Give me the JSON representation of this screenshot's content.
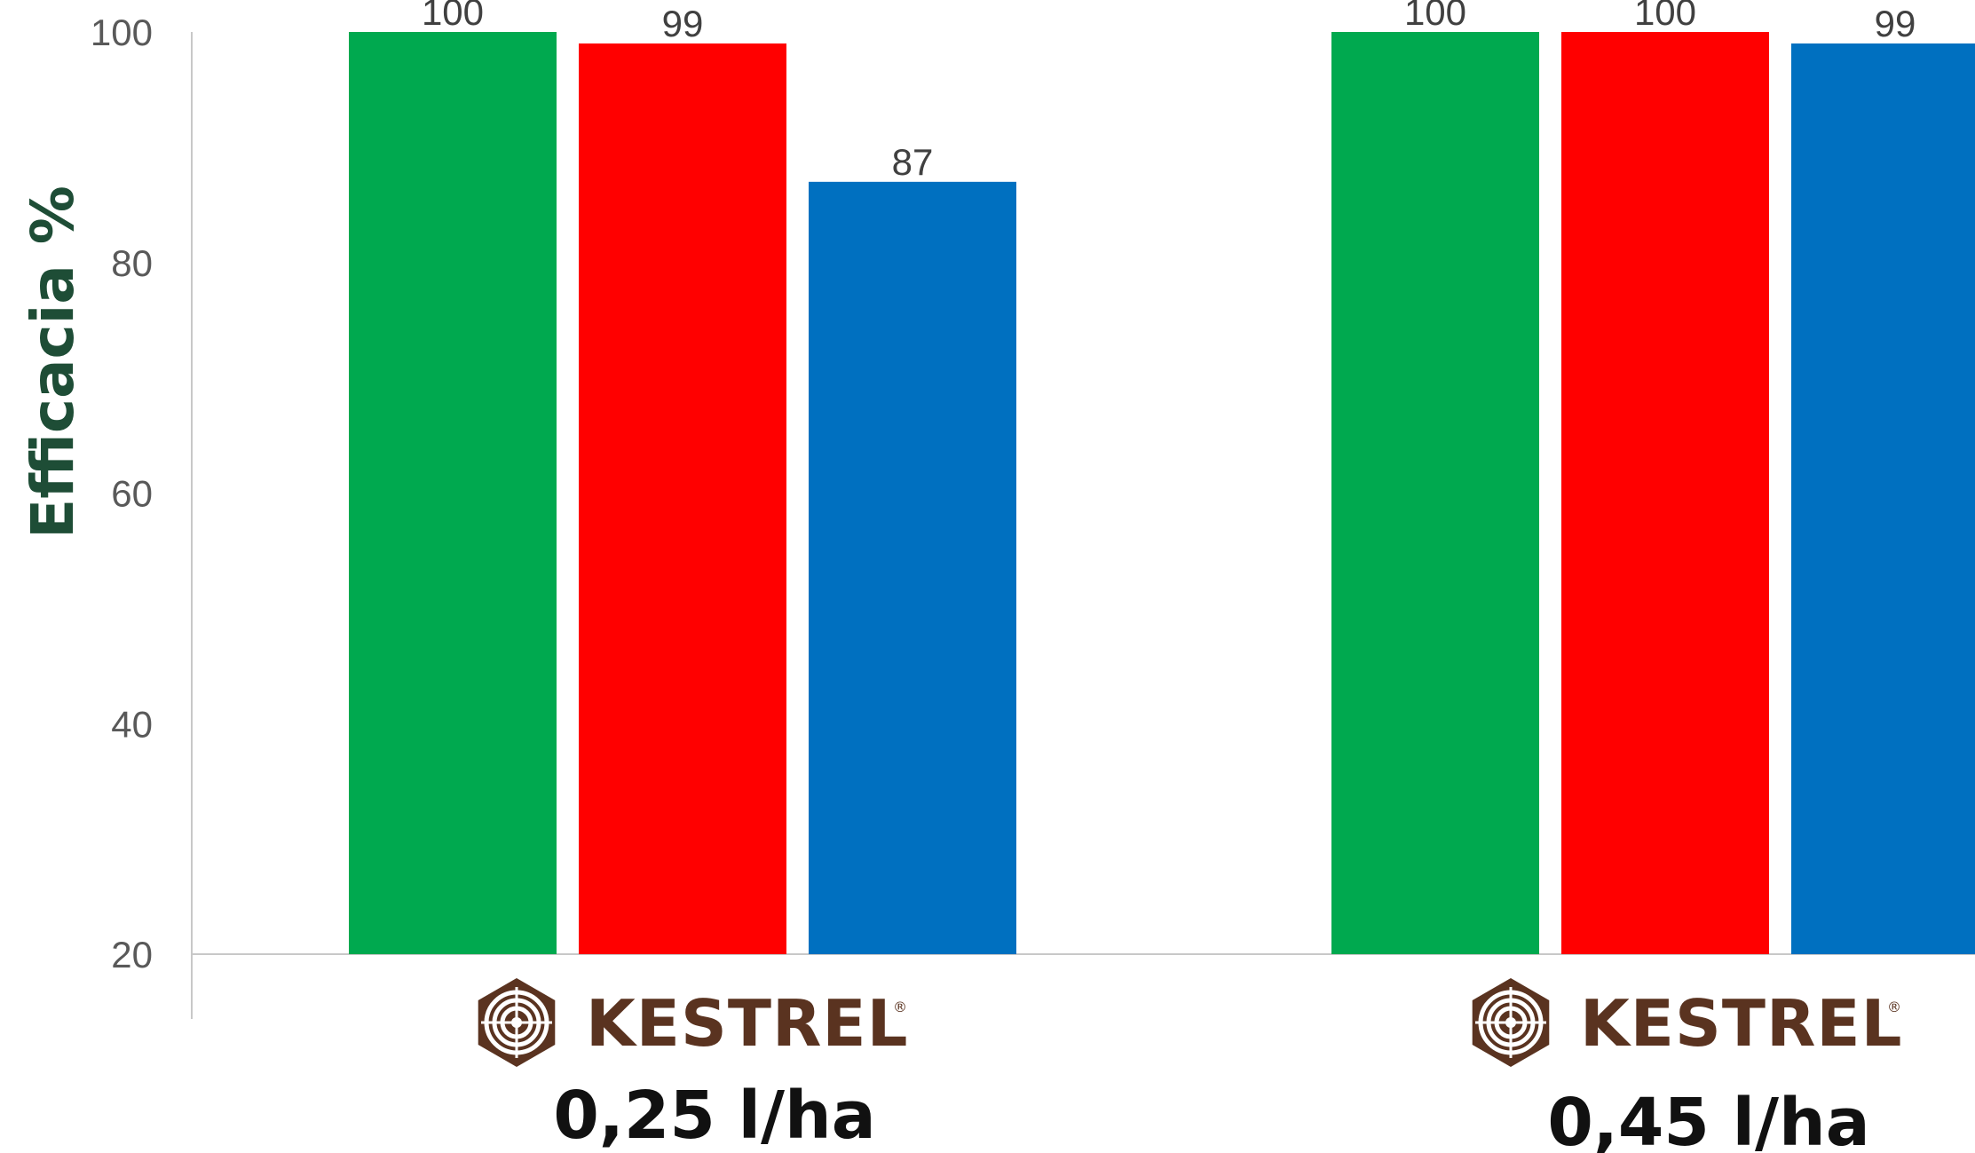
{
  "chart_data": {
    "type": "bar",
    "title": "",
    "xlabel": "",
    "ylabel": "Efficacia %",
    "ylim": [
      20,
      100
    ],
    "yticks": [
      20,
      40,
      60,
      80,
      100
    ],
    "grid": false,
    "categories": [
      {
        "brand": "KESTREL",
        "registered": "®",
        "dose": "0,25 l/ha"
      },
      {
        "brand": "KESTREL",
        "registered": "®",
        "dose": "0,45 l/ha"
      }
    ],
    "series": [
      {
        "color": "#00a94f",
        "values": [
          100,
          100
        ]
      },
      {
        "color": "#ff0000",
        "values": [
          99,
          100
        ]
      },
      {
        "color": "#0070c0",
        "values": [
          87,
          99
        ]
      }
    ],
    "data_labels": [
      [
        "100",
        "100"
      ],
      [
        "99",
        "100"
      ],
      [
        "87",
        "99"
      ]
    ],
    "axis_color": "#c8c8c8",
    "brand_color": "#5a3320"
  }
}
